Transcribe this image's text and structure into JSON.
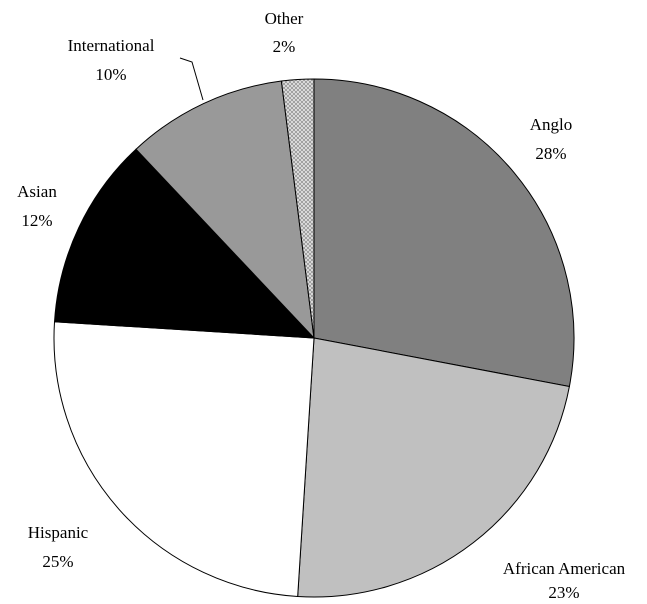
{
  "chart_data": {
    "type": "pie",
    "title": "",
    "start": "12 o'clock",
    "direction": "clockwise",
    "slices": [
      {
        "label": "Anglo",
        "value": 28,
        "value_label": "28%",
        "color": "#808080"
      },
      {
        "label": "African American",
        "value": 23,
        "value_label": "23%",
        "color": "#c0c0c0"
      },
      {
        "label": "Hispanic",
        "value": 25,
        "value_label": "25%",
        "color": "#ffffff"
      },
      {
        "label": "Asian",
        "value": 12,
        "value_label": "12%",
        "color": "#000000"
      },
      {
        "label": "International",
        "value": 10,
        "value_label": "10%",
        "color": "#999999"
      },
      {
        "label": "Other",
        "value": 2,
        "value_label": "2%",
        "color": "#dcdcdc",
        "pattern": "crosshatch"
      }
    ]
  }
}
